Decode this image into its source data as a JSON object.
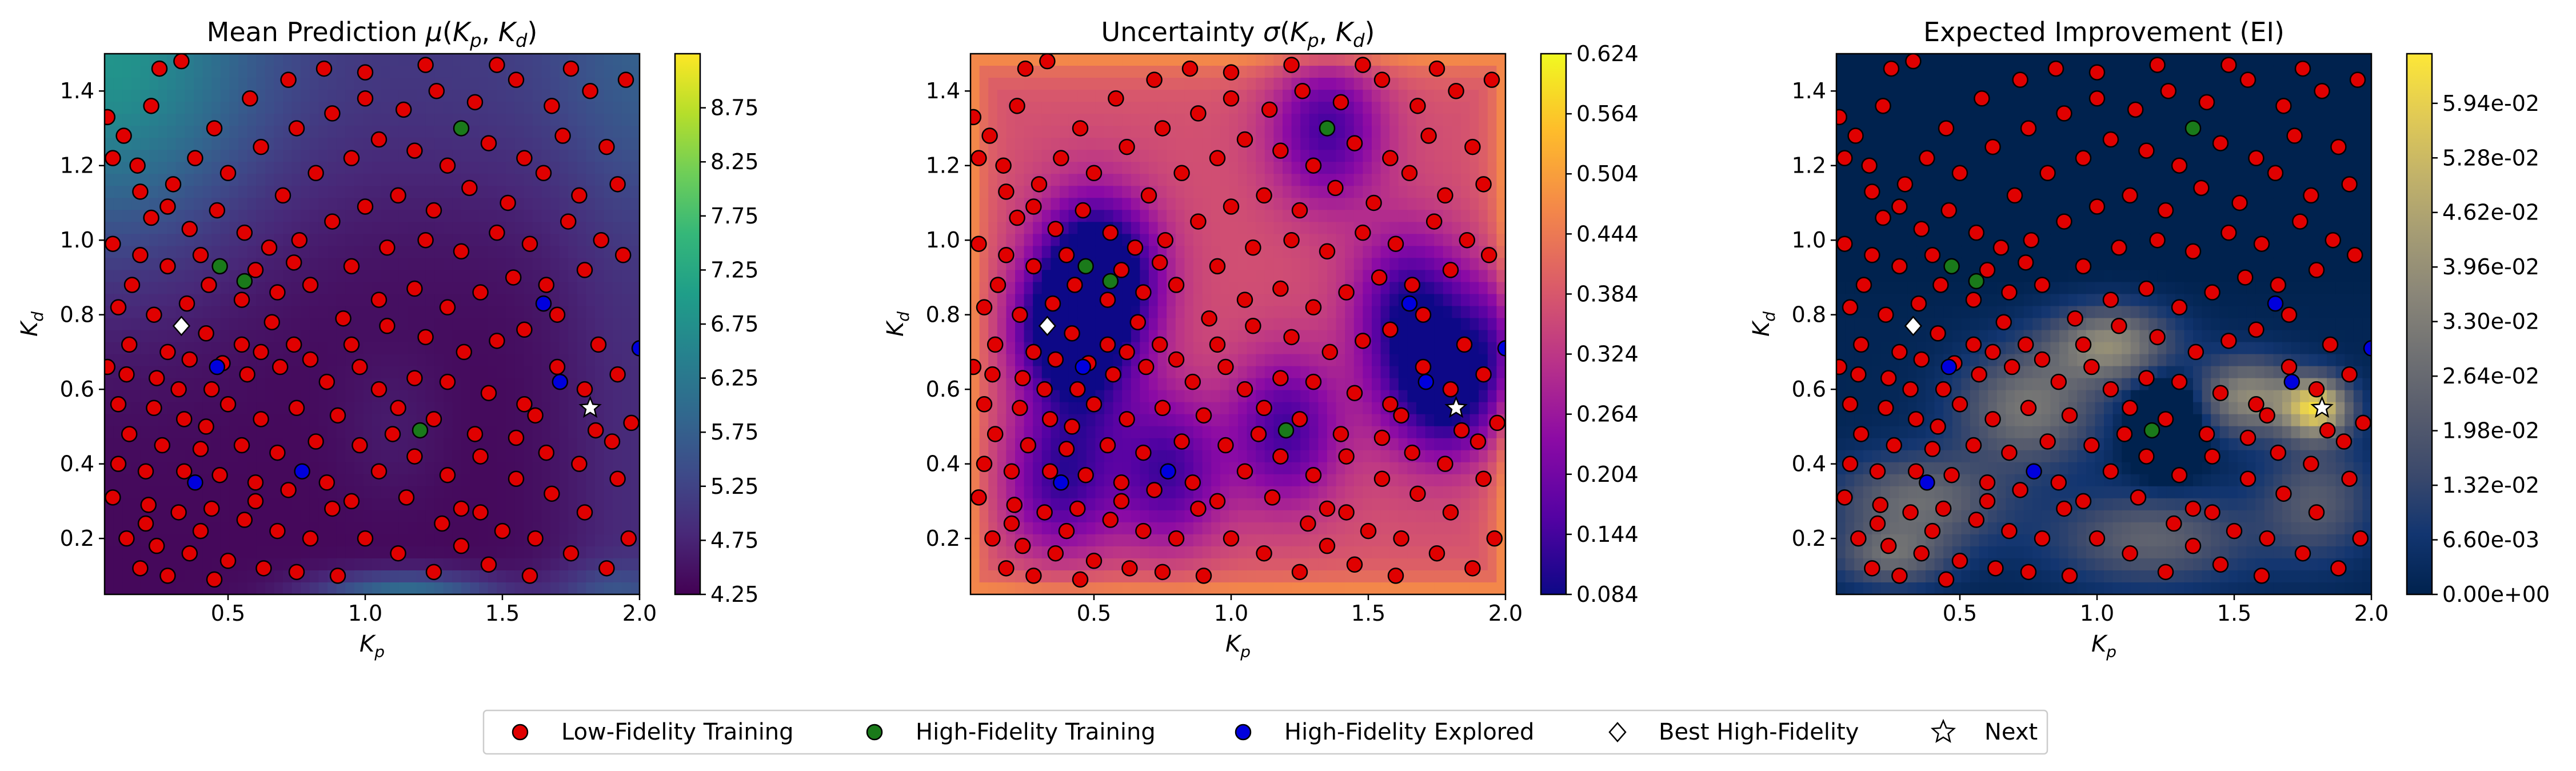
{
  "figure": {
    "legend": {
      "entries": [
        {
          "label": "Low-Fidelity Training",
          "marker": "circle",
          "color": "#e00000"
        },
        {
          "label": "High-Fidelity Training",
          "marker": "circle",
          "color": "#1a7a1a"
        },
        {
          "label": "High-Fidelity Explored",
          "marker": "circle",
          "color": "#0000dd"
        },
        {
          "label": "Best High-Fidelity",
          "marker": "diamond",
          "color": "#ffffff"
        },
        {
          "label": "Next",
          "marker": "star",
          "color": "#ffffff"
        }
      ],
      "placement": "bottom-center"
    }
  },
  "chart_data": [
    {
      "type": "heatmap",
      "title": "Mean Prediction μ(K_p, K_d)",
      "xlabel": "K_p",
      "ylabel": "K_d",
      "xlim": [
        0.05,
        2.0
      ],
      "ylim": [
        0.05,
        1.5
      ],
      "xticks": [
        "0.5",
        "1.0",
        "1.5",
        "2.0"
      ],
      "yticks": [
        "0.2",
        "0.4",
        "0.6",
        "0.8",
        "1.0",
        "1.2",
        "1.4"
      ],
      "colormap": "viridis",
      "colorbar": {
        "min": 4.25,
        "max": 9.25,
        "ticks": [
          "4.25",
          "4.75",
          "5.25",
          "5.75",
          "6.25",
          "6.75",
          "7.25",
          "7.75",
          "8.25",
          "8.75"
        ]
      }
    },
    {
      "type": "heatmap",
      "title": "Uncertainty σ(K_p, K_d)",
      "xlabel": "K_p",
      "ylabel": "K_d",
      "xlim": [
        0.05,
        2.0
      ],
      "ylim": [
        0.05,
        1.5
      ],
      "xticks": [
        "0.5",
        "1.0",
        "1.5",
        "2.0"
      ],
      "yticks": [
        "0.2",
        "0.4",
        "0.6",
        "0.8",
        "1.0",
        "1.2",
        "1.4"
      ],
      "colormap": "plasma",
      "colorbar": {
        "min": 0.084,
        "max": 0.624,
        "ticks": [
          "0.084",
          "0.144",
          "0.204",
          "0.264",
          "0.324",
          "0.384",
          "0.444",
          "0.504",
          "0.564",
          "0.624"
        ]
      }
    },
    {
      "type": "heatmap",
      "title": "Expected Improvement (EI)",
      "xlabel": "K_p",
      "ylabel": "K_d",
      "xlim": [
        0.05,
        2.0
      ],
      "ylim": [
        0.05,
        1.5
      ],
      "xticks": [
        "0.5",
        "1.0",
        "1.5",
        "2.0"
      ],
      "yticks": [
        "0.2",
        "0.4",
        "0.6",
        "0.8",
        "1.0",
        "1.2",
        "1.4"
      ],
      "colormap": "cividis",
      "colorbar": {
        "min": 0.0,
        "max": 0.0654,
        "ticks": [
          "0.00e+00",
          "6.60e-03",
          "1.32e-02",
          "1.98e-02",
          "2.64e-02",
          "3.30e-02",
          "3.96e-02",
          "4.62e-02",
          "5.28e-02",
          "5.94e-02"
        ]
      }
    }
  ],
  "scatter_data": {
    "low_fidelity_training": [
      [
        0.06,
        1.33
      ],
      [
        0.08,
        1.22
      ],
      [
        0.12,
        1.28
      ],
      [
        0.17,
        1.2
      ],
      [
        0.18,
        1.13
      ],
      [
        0.22,
        1.36
      ],
      [
        0.25,
        1.46
      ],
      [
        0.33,
        1.48
      ],
      [
        0.3,
        1.15
      ],
      [
        0.28,
        1.09
      ],
      [
        0.22,
        1.06
      ],
      [
        0.08,
        0.99
      ],
      [
        0.18,
        0.96
      ],
      [
        0.28,
        0.93
      ],
      [
        0.4,
        0.96
      ],
      [
        0.15,
        0.88
      ],
      [
        0.1,
        0.82
      ],
      [
        0.23,
        0.8
      ],
      [
        0.35,
        0.83
      ],
      [
        0.43,
        0.88
      ],
      [
        0.55,
        0.84
      ],
      [
        0.6,
        0.92
      ],
      [
        0.68,
        0.86
      ],
      [
        0.42,
        0.75
      ],
      [
        0.55,
        0.72
      ],
      [
        0.28,
        0.7
      ],
      [
        0.36,
        0.68
      ],
      [
        0.13,
        0.64
      ],
      [
        0.24,
        0.63
      ],
      [
        0.32,
        0.6
      ],
      [
        0.44,
        0.6
      ],
      [
        0.57,
        0.64
      ],
      [
        0.69,
        0.66
      ],
      [
        0.5,
        0.56
      ],
      [
        0.62,
        0.52
      ],
      [
        0.75,
        0.55
      ],
      [
        0.1,
        0.56
      ],
      [
        0.23,
        0.55
      ],
      [
        0.34,
        0.52
      ],
      [
        0.42,
        0.5
      ],
      [
        0.14,
        0.48
      ],
      [
        0.26,
        0.45
      ],
      [
        0.4,
        0.44
      ],
      [
        0.55,
        0.45
      ],
      [
        0.68,
        0.43
      ],
      [
        0.82,
        0.46
      ],
      [
        0.1,
        0.4
      ],
      [
        0.2,
        0.38
      ],
      [
        0.34,
        0.38
      ],
      [
        0.47,
        0.37
      ],
      [
        0.6,
        0.35
      ],
      [
        0.72,
        0.33
      ],
      [
        0.08,
        0.31
      ],
      [
        0.21,
        0.29
      ],
      [
        0.32,
        0.27
      ],
      [
        0.44,
        0.28
      ],
      [
        0.56,
        0.25
      ],
      [
        0.68,
        0.22
      ],
      [
        0.8,
        0.2
      ],
      [
        0.13,
        0.2
      ],
      [
        0.24,
        0.18
      ],
      [
        0.36,
        0.16
      ],
      [
        0.5,
        0.14
      ],
      [
        0.63,
        0.12
      ],
      [
        0.75,
        0.11
      ],
      [
        0.9,
        0.1
      ],
      [
        0.2,
        0.24
      ],
      [
        0.4,
        0.22
      ],
      [
        0.6,
        0.3
      ],
      [
        0.86,
        0.35
      ],
      [
        0.95,
        0.3
      ],
      [
        0.88,
        0.28
      ],
      [
        1.0,
        0.2
      ],
      [
        1.12,
        0.16
      ],
      [
        1.25,
        0.11
      ],
      [
        1.35,
        0.18
      ],
      [
        1.45,
        0.13
      ],
      [
        1.6,
        0.1
      ],
      [
        1.75,
        0.16
      ],
      [
        1.88,
        0.12
      ],
      [
        1.96,
        0.2
      ],
      [
        1.8,
        0.27
      ],
      [
        1.68,
        0.32
      ],
      [
        1.55,
        0.36
      ],
      [
        1.42,
        0.27
      ],
      [
        1.28,
        0.24
      ],
      [
        1.15,
        0.31
      ],
      [
        1.05,
        0.38
      ],
      [
        1.18,
        0.42
      ],
      [
        1.3,
        0.37
      ],
      [
        1.42,
        0.42
      ],
      [
        1.55,
        0.47
      ],
      [
        1.66,
        0.43
      ],
      [
        1.78,
        0.4
      ],
      [
        1.9,
        0.46
      ],
      [
        1.97,
        0.51
      ],
      [
        1.84,
        0.49
      ],
      [
        1.25,
        0.52
      ],
      [
        1.1,
        0.48
      ],
      [
        0.98,
        0.45
      ],
      [
        0.9,
        0.53
      ],
      [
        1.05,
        0.6
      ],
      [
        1.18,
        0.63
      ],
      [
        1.3,
        0.62
      ],
      [
        1.45,
        0.59
      ],
      [
        1.58,
        0.56
      ],
      [
        1.62,
        0.53
      ],
      [
        1.7,
        0.66
      ],
      [
        1.8,
        0.6
      ],
      [
        1.92,
        0.64
      ],
      [
        0.86,
        0.62
      ],
      [
        0.8,
        0.68
      ],
      [
        0.95,
        0.72
      ],
      [
        1.08,
        0.77
      ],
      [
        1.22,
        0.74
      ],
      [
        1.36,
        0.7
      ],
      [
        1.48,
        0.73
      ],
      [
        1.58,
        0.76
      ],
      [
        1.7,
        0.8
      ],
      [
        1.85,
        0.72
      ],
      [
        0.92,
        0.79
      ],
      [
        1.05,
        0.84
      ],
      [
        1.18,
        0.87
      ],
      [
        1.3,
        0.82
      ],
      [
        1.42,
        0.86
      ],
      [
        1.54,
        0.9
      ],
      [
        1.66,
        0.88
      ],
      [
        1.8,
        0.92
      ],
      [
        1.94,
        0.96
      ],
      [
        0.8,
        0.88
      ],
      [
        0.95,
        0.93
      ],
      [
        1.08,
        0.98
      ],
      [
        1.22,
        1.0
      ],
      [
        1.35,
        0.97
      ],
      [
        1.48,
        1.02
      ],
      [
        1.6,
        0.99
      ],
      [
        1.74,
        1.05
      ],
      [
        1.86,
        1.0
      ],
      [
        0.76,
        1.0
      ],
      [
        0.88,
        1.05
      ],
      [
        1.0,
        1.09
      ],
      [
        1.12,
        1.12
      ],
      [
        1.25,
        1.08
      ],
      [
        1.38,
        1.14
      ],
      [
        1.52,
        1.1
      ],
      [
        1.65,
        1.18
      ],
      [
        1.78,
        1.12
      ],
      [
        1.92,
        1.15
      ],
      [
        0.7,
        1.12
      ],
      [
        0.82,
        1.18
      ],
      [
        0.95,
        1.22
      ],
      [
        1.05,
        1.27
      ],
      [
        1.18,
        1.24
      ],
      [
        1.3,
        1.2
      ],
      [
        1.45,
        1.26
      ],
      [
        1.58,
        1.22
      ],
      [
        1.72,
        1.28
      ],
      [
        1.88,
        1.25
      ],
      [
        0.62,
        1.25
      ],
      [
        0.75,
        1.3
      ],
      [
        0.88,
        1.34
      ],
      [
        1.0,
        1.38
      ],
      [
        1.14,
        1.35
      ],
      [
        1.26,
        1.4
      ],
      [
        1.4,
        1.37
      ],
      [
        1.55,
        1.43
      ],
      [
        1.68,
        1.36
      ],
      [
        1.82,
        1.4
      ],
      [
        1.95,
        1.43
      ],
      [
        0.58,
        1.38
      ],
      [
        0.72,
        1.43
      ],
      [
        0.85,
        1.46
      ],
      [
        1.0,
        1.45
      ],
      [
        1.22,
        1.47
      ],
      [
        1.48,
        1.47
      ],
      [
        1.75,
        1.46
      ],
      [
        0.45,
        1.3
      ],
      [
        0.5,
        1.18
      ],
      [
        0.38,
        1.22
      ],
      [
        0.46,
        1.08
      ],
      [
        0.36,
        1.03
      ],
      [
        0.56,
        1.02
      ],
      [
        0.65,
        0.98
      ],
      [
        0.74,
        0.94
      ],
      [
        0.66,
        0.78
      ],
      [
        0.74,
        0.72
      ],
      [
        0.62,
        0.7
      ],
      [
        0.48,
        0.67
      ],
      [
        0.14,
        0.72
      ],
      [
        0.06,
        0.66
      ],
      [
        0.18,
        0.12
      ],
      [
        0.28,
        0.1
      ],
      [
        0.45,
        0.09
      ],
      [
        1.35,
        0.28
      ],
      [
        1.5,
        0.22
      ],
      [
        1.62,
        0.2
      ],
      [
        1.92,
        0.36
      ],
      [
        1.12,
        0.55
      ],
      [
        0.98,
        0.66
      ],
      [
        1.4,
        0.48
      ]
    ],
    "high_fidelity_training": [
      [
        1.35,
        1.3
      ],
      [
        0.47,
        0.93
      ],
      [
        0.56,
        0.89
      ],
      [
        1.2,
        0.49
      ]
    ],
    "high_fidelity_explored": [
      [
        1.65,
        0.83
      ],
      [
        1.71,
        0.62
      ],
      [
        0.46,
        0.66
      ],
      [
        0.38,
        0.35
      ],
      [
        0.77,
        0.38
      ],
      [
        2.0,
        0.71
      ]
    ],
    "best_high_fidelity": [
      0.33,
      0.77
    ],
    "next": [
      1.82,
      0.55
    ]
  }
}
